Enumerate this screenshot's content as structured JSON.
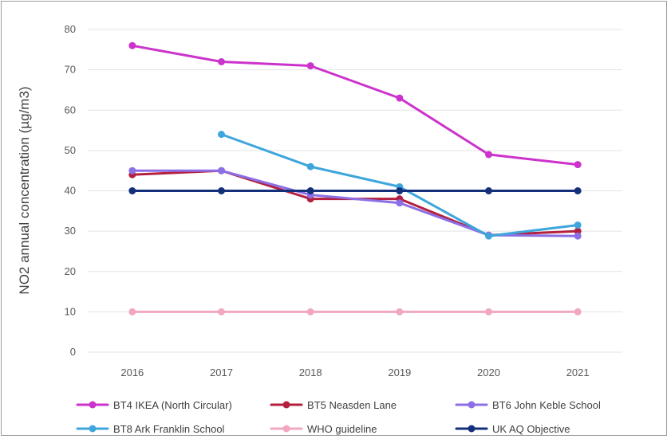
{
  "chart_data": {
    "type": "line",
    "title": "",
    "xlabel": "",
    "ylabel": "NO2 annual concentration (µg/m3)",
    "categories": [
      "2016",
      "2017",
      "2018",
      "2019",
      "2020",
      "2021"
    ],
    "ylim": [
      0,
      80
    ],
    "yticks": [
      "0",
      "10",
      "20",
      "30",
      "40",
      "50",
      "60",
      "70",
      "80"
    ],
    "grid": true,
    "legend_position": "bottom",
    "series": [
      {
        "name": "BT4 IKEA (North Circular)",
        "color": "#cc33cc",
        "values": [
          76,
          72,
          71,
          63,
          49,
          46.5
        ]
      },
      {
        "name": "BT5 Neasden Lane",
        "color": "#b3203f",
        "values": [
          44,
          45,
          38,
          38,
          29,
          30
        ]
      },
      {
        "name": "BT6 John Keble School",
        "color": "#8c6fe6",
        "values": [
          45,
          45,
          39,
          37,
          29,
          28.8
        ]
      },
      {
        "name": "BT8 Ark Franklin School",
        "color": "#3ea6dc",
        "values": [
          null,
          54,
          46,
          41,
          28.8,
          31.5
        ]
      },
      {
        "name": "WHO guideline",
        "color": "#f2a7c0",
        "values": [
          10,
          10,
          10,
          10,
          10,
          10
        ]
      },
      {
        "name": "UK AQ Objective",
        "color": "#14307a",
        "values": [
          40,
          40,
          40,
          40,
          40,
          40
        ]
      }
    ]
  }
}
